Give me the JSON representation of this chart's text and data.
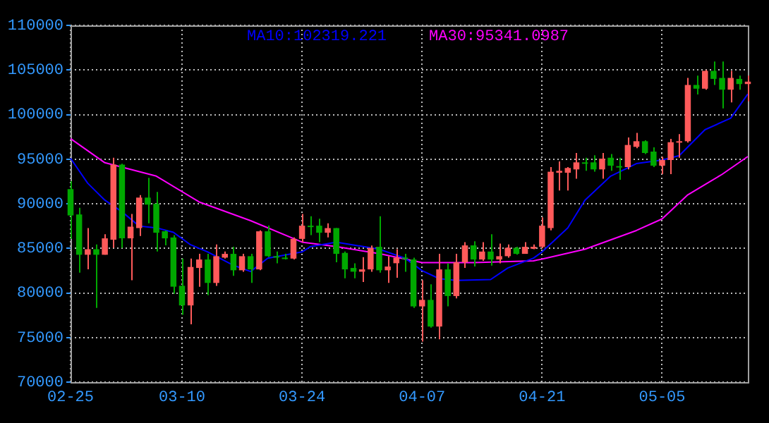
{
  "chart_data": {
    "type": "candlestick",
    "x": [
      "--02-25",
      "--02-26",
      "--02-27",
      "--02-28",
      "--03-01",
      "--03-02",
      "--03-03",
      "--03-04",
      "--03-05",
      "--03-06",
      "--03-07",
      "--03-08",
      "--03-09",
      "--03-10",
      "--03-11",
      "--03-12",
      "--03-13",
      "--03-14",
      "--03-15",
      "--03-16",
      "--03-17",
      "--03-18",
      "--03-19",
      "--03-20",
      "--03-21",
      "--03-22",
      "--03-23",
      "--03-24",
      "--03-25",
      "--03-26",
      "--03-27",
      "--03-28",
      "--03-29",
      "--03-30",
      "--03-31",
      "--04-01",
      "--04-02",
      "--04-03",
      "--04-04",
      "--04-05",
      "--04-06",
      "--04-07",
      "--04-08",
      "--04-09",
      "--04-10",
      "--04-11",
      "--04-12",
      "--04-13",
      "--04-14",
      "--04-15",
      "--04-16",
      "--04-17",
      "--04-18",
      "--04-19",
      "--04-20",
      "--04-21",
      "--04-22",
      "--04-23",
      "--04-24",
      "--04-25",
      "--04-26",
      "--04-27",
      "--04-28",
      "--04-29",
      "--04-30",
      "--05-01",
      "--05-02",
      "--05-03",
      "--05-04",
      "--05-05",
      "--05-06",
      "--05-07",
      "--05-08",
      "--05-09",
      "--05-10",
      "--05-11",
      "--05-12",
      "--05-13",
      "--05-14",
      "--05-15"
    ],
    "ohlc": [
      [
        91640,
        92530,
        86060,
        88690
      ],
      [
        88800,
        89540,
        82280,
        84280
      ],
      [
        84280,
        87270,
        82640,
        84900
      ],
      [
        84900,
        85430,
        78330,
        84280
      ],
      [
        84280,
        86590,
        84280,
        86120
      ],
      [
        85960,
        95160,
        85060,
        94380
      ],
      [
        94380,
        94480,
        85060,
        86120
      ],
      [
        86120,
        88850,
        81430,
        87430
      ],
      [
        87270,
        90960,
        86380,
        90690
      ],
      [
        90690,
        92900,
        87800,
        89900
      ],
      [
        90010,
        91320,
        84640,
        86750
      ],
      [
        86910,
        87010,
        85330,
        86120
      ],
      [
        86220,
        86490,
        79910,
        80700
      ],
      [
        80800,
        83850,
        77540,
        78600
      ],
      [
        78600,
        83850,
        76490,
        82910
      ],
      [
        82800,
        84380,
        80700,
        83750
      ],
      [
        83750,
        84380,
        79750,
        81120
      ],
      [
        81120,
        85430,
        80800,
        84120
      ],
      [
        83960,
        84640,
        83850,
        84380
      ],
      [
        84380,
        85170,
        81910,
        82540
      ],
      [
        82540,
        84380,
        82380,
        84120
      ],
      [
        84120,
        84380,
        81120,
        82640
      ],
      [
        82640,
        87010,
        82540,
        86910
      ],
      [
        86910,
        87540,
        84010,
        84120
      ],
      [
        84120,
        84640,
        83330,
        83960
      ],
      [
        83960,
        84380,
        83750,
        83850
      ],
      [
        83850,
        86220,
        83750,
        86060
      ],
      [
        86060,
        88850,
        85700,
        87540
      ],
      [
        87540,
        88590,
        86480,
        87380
      ],
      [
        87540,
        88330,
        85700,
        86750
      ],
      [
        86750,
        87800,
        86220,
        87270
      ],
      [
        87270,
        87270,
        83430,
        84380
      ],
      [
        84490,
        84640,
        81640,
        82640
      ],
      [
        82800,
        83330,
        81640,
        82380
      ],
      [
        82380,
        84010,
        81220,
        82640
      ],
      [
        82640,
        85320,
        82380,
        85060
      ],
      [
        85170,
        88590,
        82280,
        82540
      ],
      [
        82540,
        84120,
        81120,
        82960
      ],
      [
        83330,
        84900,
        81700,
        83960
      ],
      [
        83960,
        84380,
        82380,
        83850
      ],
      [
        83750,
        83960,
        78330,
        78490
      ],
      [
        78490,
        81430,
        74540,
        79220
      ],
      [
        79220,
        80960,
        76100,
        76230
      ],
      [
        76230,
        84380,
        74800,
        82640
      ],
      [
        82640,
        83330,
        78490,
        79650
      ],
      [
        79650,
        84380,
        79380,
        83430
      ],
      [
        83430,
        85700,
        82800,
        85330
      ],
      [
        85330,
        85800,
        82960,
        83750
      ],
      [
        83750,
        85700,
        83590,
        84640
      ],
      [
        84640,
        86590,
        83070,
        83750
      ],
      [
        83750,
        85540,
        83330,
        84120
      ],
      [
        84120,
        85430,
        83960,
        85060
      ],
      [
        85060,
        85170,
        84280,
        84380
      ],
      [
        84380,
        85700,
        84380,
        85170
      ],
      [
        84960,
        85430,
        84910,
        85170
      ],
      [
        85170,
        88480,
        85000,
        87540
      ],
      [
        87270,
        94110,
        87010,
        93590
      ],
      [
        93480,
        94740,
        91480,
        93690
      ],
      [
        93480,
        94110,
        91480,
        94010
      ],
      [
        93850,
        95690,
        92800,
        94640
      ],
      [
        94640,
        95160,
        93690,
        94530
      ],
      [
        94640,
        95430,
        93590,
        93850
      ],
      [
        93850,
        95690,
        92800,
        95060
      ],
      [
        95160,
        95580,
        93690,
        94270
      ],
      [
        94220,
        95160,
        92690,
        94110
      ],
      [
        94110,
        97430,
        93850,
        96590
      ],
      [
        96380,
        97950,
        96220,
        97010
      ],
      [
        97010,
        97110,
        95580,
        95690
      ],
      [
        95850,
        96320,
        94110,
        94270
      ],
      [
        94270,
        95270,
        93320,
        94900
      ],
      [
        94900,
        97270,
        93320,
        96900
      ],
      [
        96900,
        97800,
        95160,
        97010
      ],
      [
        97010,
        104110,
        96850,
        103320
      ],
      [
        103320,
        104370,
        102260,
        102900
      ],
      [
        102900,
        105000,
        102790,
        104900
      ],
      [
        104900,
        105950,
        103320,
        104000
      ],
      [
        104110,
        105950,
        100690,
        102790
      ],
      [
        102790,
        104900,
        101370,
        104110
      ],
      [
        104000,
        104370,
        102790,
        103420
      ],
      [
        103420,
        104370,
        101480,
        103690
      ]
    ],
    "colors": [
      "#00a800",
      "#00a800",
      "#ff5a5a",
      "#00a800",
      "#ff5a5a",
      "#ff5a5a",
      "#00a800",
      "#ff5a5a",
      "#ff5a5a",
      "#00a800",
      "#00a800",
      "#00a800",
      "#00a800",
      "#00a800",
      "#ff5a5a",
      "#ff5a5a",
      "#00a800",
      "#ff5a5a",
      "#ff5a5a",
      "#00a800",
      "#ff5a5a",
      "#00a800",
      "#ff5a5a",
      "#00a800",
      "#00a800",
      "#00a800",
      "#ff5a5a",
      "#ff5a5a",
      "#00a800",
      "#00a800",
      "#ff5a5a",
      "#00a800",
      "#00a800",
      "#00a800",
      "#ff5a5a",
      "#ff5a5a",
      "#00a800",
      "#ff5a5a",
      "#ff5a5a",
      "#00a800",
      "#00a800",
      "#ff5a5a",
      "#00a800",
      "#ff5a5a",
      "#00a800",
      "#ff5a5a",
      "#ff5a5a",
      "#00a800",
      "#ff5a5a",
      "#00a800",
      "#ff5a5a",
      "#ff5a5a",
      "#00a800",
      "#ff5a5a",
      "#ff5a5a",
      "#ff5a5a",
      "#ff5a5a",
      "#ff5a5a",
      "#ff5a5a",
      "#ff5a5a",
      "#00a800",
      "#00a800",
      "#ff5a5a",
      "#00a800",
      "#00a800",
      "#ff5a5a",
      "#ff5a5a",
      "#00a800",
      "#00a800",
      "#ff5a5a",
      "#ff5a5a",
      "#ff5a5a",
      "#ff5a5a",
      "#00a800",
      "#ff5a5a",
      "#00a800",
      "#00a800",
      "#ff5a5a",
      "#00a800",
      "#ff5a5a"
    ],
    "series": [
      {
        "name": "MA10:102319.221",
        "type": "line",
        "color": "#0000ff",
        "x": [
          "--02-25",
          "--02-27",
          "--03-01",
          "--03-03",
          "--03-05",
          "--03-07",
          "--03-09",
          "--03-11",
          "--03-13",
          "--03-16",
          "--03-18",
          "--03-20",
          "--03-24",
          "--03-25",
          "--03-28",
          "--04-02",
          "--04-05",
          "--04-07",
          "--04-09",
          "--04-11",
          "--04-15",
          "--04-17",
          "--04-20",
          "--04-21",
          "--04-24",
          "--04-26",
          "--04-29",
          "--05-02",
          "--05-05",
          "--05-07",
          "--05-10",
          "--05-13",
          "--05-15"
        ],
        "values": [
          95100,
          92300,
          90400,
          89100,
          87500,
          87300,
          86800,
          85400,
          84600,
          83100,
          82400,
          83900,
          84600,
          85200,
          85700,
          84900,
          83900,
          82500,
          81600,
          81400,
          81500,
          82800,
          83900,
          84600,
          87300,
          90400,
          93100,
          94500,
          94900,
          95400,
          98300,
          99600,
          102300
        ]
      },
      {
        "name": "MA30:95341.0987",
        "type": "line",
        "color": "#ff00ff",
        "x": [
          "--02-25",
          "--03-01",
          "--03-07",
          "--03-12",
          "--03-18",
          "--03-24",
          "--03-28",
          "--04-02",
          "--04-07",
          "--04-13",
          "--04-20",
          "--04-21",
          "--04-26",
          "--05-02",
          "--05-05",
          "--05-08",
          "--05-12",
          "--05-15"
        ],
        "values": [
          97300,
          94600,
          93100,
          90200,
          88100,
          85700,
          85200,
          84400,
          83400,
          83400,
          83600,
          83800,
          84900,
          87000,
          88300,
          91000,
          93300,
          95300
        ]
      }
    ],
    "xlim": [
      "--02-25",
      "--05-15"
    ],
    "xticks": [
      {
        "value": "--02-25",
        "label": "02-25"
      },
      {
        "value": "--03-10",
        "label": "03-10"
      },
      {
        "value": "--03-24",
        "label": "03-24"
      },
      {
        "value": "--04-07",
        "label": "04-07"
      },
      {
        "value": "--04-21",
        "label": "04-21"
      },
      {
        "value": "--05-05",
        "label": "05-05"
      }
    ],
    "ylim": [
      70000,
      110000
    ],
    "yticks": [
      70000,
      75000,
      80000,
      85000,
      90000,
      95000,
      100000,
      105000,
      110000
    ],
    "grid": true,
    "legend": "top",
    "marker": "none",
    "line_style": "solid"
  }
}
